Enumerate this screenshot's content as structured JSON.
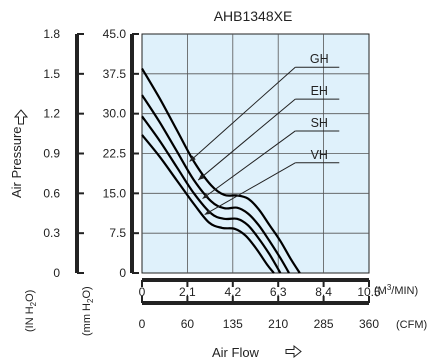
{
  "chart_data": {
    "type": "line",
    "title": "AHB1348XE",
    "xlabel": "Air Flow",
    "ylabel": "Air Pressure",
    "xlim": [
      0,
      10.5
    ],
    "ylim": [
      0,
      45
    ],
    "grid": true,
    "plot_background": "#dff1fb",
    "curve_color": "#000000",
    "y_ticks_inh2o": [
      "1.8",
      "1.5",
      "1.2",
      "0.9",
      "0.6",
      "0.3",
      "0"
    ],
    "y_ticks_mmh2o": [
      "45.0",
      "37.5",
      "30.0",
      "22.5",
      "15.0",
      "7.5",
      "0"
    ],
    "y_tick_values": [
      45,
      37.5,
      30,
      22.5,
      15,
      7.5,
      0
    ],
    "x_ticks_m3min": [
      "0",
      "2.1",
      "4.2",
      "6.3",
      "8.4",
      "10.5"
    ],
    "x_ticks_cfm": [
      "0",
      "60",
      "135",
      "210",
      "285",
      "360"
    ],
    "x_tick_values": [
      0,
      2.1,
      4.2,
      6.3,
      8.4,
      10.5
    ],
    "units": {
      "x_primary_before": "(M",
      "x_primary_sup": "3",
      "x_primary_after": "/MIN)",
      "x_secondary": "(CFM)",
      "y_left_before": "(IN H",
      "y_left_sub": "2",
      "y_left_after": "O)",
      "y_right_before": "(mm H",
      "y_right_sub": "2",
      "y_right_after": "O)"
    },
    "series": [
      {
        "name": "GH",
        "x": [
          0,
          0.8,
          1.6,
          2.4,
          3.2,
          3.8,
          4.4,
          4.9,
          5.4,
          5.9,
          6.4,
          6.9,
          7.3
        ],
        "y": [
          38.5,
          33,
          27,
          21,
          16.5,
          14.7,
          14.6,
          14,
          12,
          9,
          6,
          2.5,
          0
        ],
        "label_xy": [
          8.2,
          39.5
        ],
        "leader_to": [
          2.2,
          21
        ]
      },
      {
        "name": "EH",
        "x": [
          0,
          0.8,
          1.6,
          2.4,
          3.2,
          3.8,
          4.4,
          4.9,
          5.4,
          5.9,
          6.4,
          6.8
        ],
        "y": [
          33.5,
          28.5,
          23,
          17.5,
          13.5,
          12.2,
          12.3,
          11.2,
          9,
          6,
          2.8,
          0
        ],
        "label_xy": [
          8.2,
          33.5
        ],
        "leader_to": [
          2.6,
          17.5
        ]
      },
      {
        "name": "SH",
        "x": [
          0,
          0.8,
          1.6,
          2.4,
          3.2,
          3.8,
          4.4,
          4.9,
          5.4,
          5.9,
          6.4
        ],
        "y": [
          29.5,
          25,
          20,
          15,
          11.2,
          10.2,
          10.2,
          9,
          6.5,
          3.5,
          0
        ],
        "label_xy": [
          8.2,
          27.5
        ],
        "leader_to": [
          2.8,
          14
        ]
      },
      {
        "name": "VH",
        "x": [
          0,
          0.8,
          1.6,
          2.4,
          3.1,
          3.7,
          4.3,
          4.8,
          5.3,
          5.8,
          6.1
        ],
        "y": [
          26,
          22,
          17.5,
          13,
          9.5,
          8.5,
          8.3,
          7,
          4.5,
          1.5,
          0
        ],
        "label_xy": [
          8.2,
          21.5
        ],
        "leader_to": [
          2.9,
          11
        ]
      }
    ]
  }
}
